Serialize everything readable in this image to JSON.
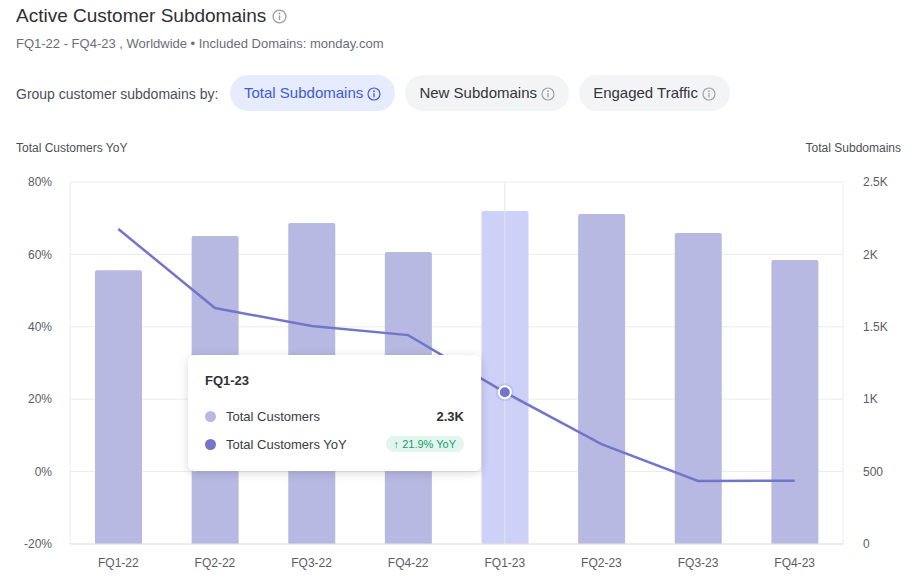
{
  "chart_data": {
    "type": "bar",
    "title": "Active Customer Subdomains",
    "subtitle": "FQ1-22 - FQ4-23 , Worldwide • Included Domains: monday.com",
    "controls": {
      "label": "Group customer subdomains by:",
      "options": [
        "Total Subdomains",
        "New Subdomains",
        "Engaged Traffic"
      ],
      "selected": "Total Subdomains"
    },
    "categories": [
      "FQ1-22",
      "FQ2-22",
      "FQ3-22",
      "FQ4-22",
      "FQ1-23",
      "FQ2-23",
      "FQ3-23",
      "FQ4-23"
    ],
    "series": [
      {
        "name": "Total Customers",
        "type": "bar",
        "axis": "y2",
        "color": "#b8b9e3",
        "colors": [
          "#b8b9e3",
          "#b8b9e3",
          "#b8b9e3",
          "#b8b9e3",
          "#cdd0f7",
          "#b8b9e3",
          "#b8b9e3",
          "#b8b9e3"
        ],
        "values": [
          1890,
          2127,
          2217,
          2017,
          2300,
          2279,
          2148,
          1961
        ]
      },
      {
        "name": "Total Customers YoY",
        "type": "line",
        "axis": "y",
        "color": "#7276c8",
        "values": [
          67.0,
          45.2,
          40.2,
          37.7,
          21.9,
          7.6,
          -2.6,
          -2.5
        ]
      }
    ],
    "ylabel": "Total Customers YoY",
    "y2label": "Total Subdomains",
    "ylim": [
      -20,
      80
    ],
    "yticks": [
      {
        "value": -20,
        "label": "-20%"
      },
      {
        "value": 0,
        "label": "0%"
      },
      {
        "value": 20,
        "label": "20%"
      },
      {
        "value": 40,
        "label": "40%"
      },
      {
        "value": 60,
        "label": "60%"
      },
      {
        "value": 80,
        "label": "80%"
      }
    ],
    "y2lim": [
      0,
      2500
    ],
    "y2ticks": [
      0,
      500,
      {
        "value": 1000,
        "label": "1K"
      },
      {
        "value": 1500,
        "label": "1.5K"
      },
      {
        "value": 2000,
        "label": "2K"
      },
      {
        "value": 2500,
        "label": "2.5K"
      }
    ],
    "grid": true,
    "tooltip": {
      "category": "FQ1-23",
      "rows": [
        {
          "name": "Total Customers",
          "value_label": "2.3K"
        },
        {
          "name": "Total Customers YoY",
          "value_label": "↑ 21.9% YoY"
        }
      ]
    }
  }
}
